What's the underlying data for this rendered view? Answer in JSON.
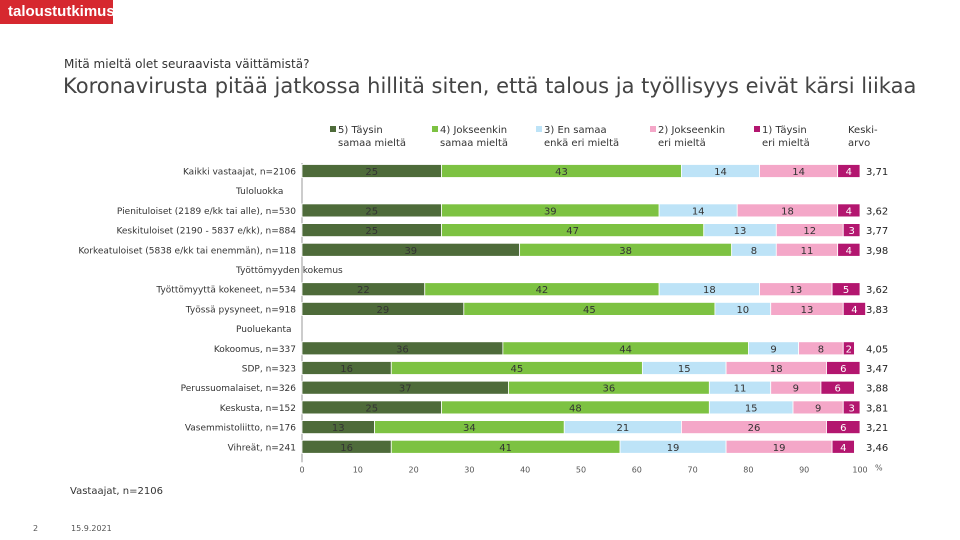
{
  "brand": {
    "logo_text": "taloustutkimus"
  },
  "header": {
    "question": "Mitä mieltä olet seuraavista väittämistä?",
    "title": "Koronavirusta pitää jatkossa hillitä siten, että talous ja työllisyys eivät kärsi liikaa"
  },
  "footer": {
    "note": "Vastaajat, n=2106",
    "page": "2",
    "date": "15.9.2021"
  },
  "chart_data": {
    "type": "bar",
    "orientation": "horizontal-stacked-100",
    "xlabel": "%",
    "xlim": [
      0,
      100
    ],
    "x_ticks": [
      "0",
      "10",
      "20",
      "30",
      "40",
      "50",
      "60",
      "70",
      "80",
      "90",
      "100"
    ],
    "avg_header": [
      "Keski-",
      "arvo"
    ],
    "legend_placement": "top",
    "series": [
      {
        "name": [
          "5) Täysin",
          "samaa mieltä"
        ],
        "color": "#4e6b3a"
      },
      {
        "name": [
          "4) Jokseenkin",
          "samaa mieltä"
        ],
        "color": "#7dc242"
      },
      {
        "name": [
          "3) En samaa",
          "enkä eri mieltä"
        ],
        "color": "#bde3f7"
      },
      {
        "name": [
          "2) Jokseenkin",
          "eri mieltä"
        ],
        "color": "#f4a7c8"
      },
      {
        "name": [
          "1) Täysin",
          "eri mieltä"
        ],
        "color": "#b3166f"
      }
    ],
    "rows": [
      {
        "kind": "bar",
        "label": "Kaikki vastaajat, n=2106",
        "values": [
          25,
          43,
          14,
          14,
          4
        ],
        "labels": [
          "25",
          "43",
          "14",
          "14",
          "4"
        ],
        "avg": "3,71"
      },
      {
        "kind": "group",
        "label": "Tuloluokka"
      },
      {
        "kind": "bar",
        "label": "Pienituloiset (2189 e/kk tai alle), n=530",
        "values": [
          25,
          39,
          14,
          18,
          4
        ],
        "labels": [
          "25",
          "39",
          "14",
          "18",
          "4"
        ],
        "avg": "3,62"
      },
      {
        "kind": "bar",
        "label": "Keskituloiset (2190 - 5837 e/kk), n=884",
        "values": [
          25,
          47,
          13,
          12,
          3
        ],
        "labels": [
          "25",
          "47",
          "13",
          "12",
          "3"
        ],
        "avg": "3,77"
      },
      {
        "kind": "bar",
        "label": "Korkeatuloiset (5838 e/kk tai enemmän), n=118",
        "values": [
          39,
          38,
          8,
          11,
          4
        ],
        "labels": [
          "39",
          "38",
          "8",
          "11",
          "4"
        ],
        "avg": "3,98"
      },
      {
        "kind": "group",
        "label": "Työttömyyden kokemus"
      },
      {
        "kind": "bar",
        "label": "Työttömyyttä kokeneet, n=534",
        "values": [
          22,
          42,
          18,
          13,
          5
        ],
        "labels": [
          "22",
          "42",
          "18",
          "13",
          "5"
        ],
        "avg": "3,62"
      },
      {
        "kind": "bar",
        "label": "Työssä pysyneet, n=918",
        "values": [
          29,
          45,
          10,
          13,
          4
        ],
        "labels": [
          "29",
          "45",
          "10",
          "13",
          "4"
        ],
        "avg": "3,83"
      },
      {
        "kind": "group",
        "label": "Puoluekanta"
      },
      {
        "kind": "bar",
        "label": "Kokoomus, n=337",
        "values": [
          36,
          44,
          9,
          8,
          2
        ],
        "labels": [
          "36",
          "44",
          "9",
          "8",
          "2"
        ],
        "avg": "4,05"
      },
      {
        "kind": "bar",
        "label": "SDP, n=323",
        "values": [
          16,
          45,
          15,
          18,
          6
        ],
        "labels": [
          "16",
          "45",
          "15",
          "18",
          "6"
        ],
        "avg": "3,47"
      },
      {
        "kind": "bar",
        "label": "Perussuomalaiset, n=326",
        "values": [
          37,
          36,
          11,
          9,
          6
        ],
        "labels": [
          "37",
          "36",
          "11",
          "9",
          "6"
        ],
        "avg": "3,88"
      },
      {
        "kind": "bar",
        "label": "Keskusta, n=152",
        "values": [
          25,
          48,
          15,
          9,
          3
        ],
        "labels": [
          "25",
          "48",
          "15",
          "9",
          "3"
        ],
        "avg": "3,81"
      },
      {
        "kind": "bar",
        "label": "Vasemmistoliitto, n=176",
        "values": [
          13,
          34,
          21,
          26,
          6
        ],
        "labels": [
          "13",
          "34",
          "21",
          "26",
          "6"
        ],
        "avg": "3,21"
      },
      {
        "kind": "bar",
        "label": "Vihreät, n=241",
        "values": [
          16,
          41,
          19,
          19,
          4
        ],
        "labels": [
          "16",
          "41",
          "19",
          "19",
          "4"
        ],
        "avg": "3,46"
      }
    ]
  }
}
